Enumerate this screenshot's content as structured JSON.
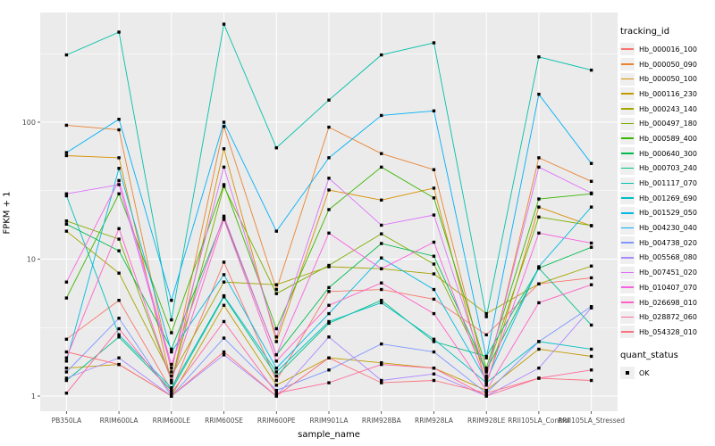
{
  "chart_data": {
    "type": "line",
    "title": "",
    "xlabel": "sample_name",
    "ylabel": "FPKM + 1",
    "y_scale": "log10",
    "y_ticks": [
      1,
      10,
      100
    ],
    "y_minor_gridlines": [
      3.162,
      31.62,
      316.2
    ],
    "ylim": [
      0.76,
      628
    ],
    "grid": true,
    "legend_position": "right",
    "legend_title": "tracking_id",
    "quant_legend": {
      "title": "quant_status",
      "label": "OK",
      "marker": "filled-black-square"
    },
    "panel_bg": "#EBEBEB",
    "grid_color": "#FFFFFF",
    "marker_color": "#000000",
    "tick_label_color": "#4D4D4D",
    "x_categories": [
      "PB350LA",
      "RRIM600LA",
      "RRIM600LE",
      "RRIM600SE",
      "RRIM600PE",
      "RRIM901LA",
      "RRIM928BA",
      "RRIM928LA",
      "RRIM928LE",
      "RRII105LA_Control",
      "RRII105LA_Stressed"
    ],
    "series": [
      {
        "name": "Hb_000016_100",
        "color": "#F8766D",
        "values": [
          2.6,
          5.0,
          1.1,
          9.5,
          1.3,
          5.8,
          6.0,
          5.1,
          2.8,
          6.6,
          7.3
        ]
      },
      {
        "name": "Hb_000050_090",
        "color": "#EA8331",
        "values": [
          95,
          88,
          1.5,
          93,
          6.0,
          92,
          59,
          45,
          1.35,
          55,
          37
        ]
      },
      {
        "name": "Hb_000050_100",
        "color": "#D89000",
        "values": [
          57,
          55,
          1.25,
          64,
          2.5,
          32,
          27,
          33,
          1.2,
          24,
          17.5
        ]
      },
      {
        "name": "Hb_000116_230",
        "color": "#C09B00",
        "values": [
          1.6,
          1.7,
          1.0,
          4.6,
          1.2,
          1.9,
          1.75,
          1.6,
          1.1,
          2.2,
          1.95
        ]
      },
      {
        "name": "Hb_000243_140",
        "color": "#A3A500",
        "values": [
          16,
          7.9,
          1.4,
          6.8,
          6.5,
          8.8,
          8.5,
          7.8,
          4.0,
          6.6,
          8.9
        ]
      },
      {
        "name": "Hb_000497_180",
        "color": "#7CAE00",
        "values": [
          19,
          14,
          1.3,
          34,
          5.6,
          9.0,
          15.3,
          9.2,
          1.5,
          20.3,
          17.6
        ]
      },
      {
        "name": "Hb_000589_400",
        "color": "#39B600",
        "values": [
          5.2,
          30,
          2.9,
          35,
          3.1,
          23,
          47,
          28,
          1.6,
          27.5,
          30
        ]
      },
      {
        "name": "Hb_000640_300",
        "color": "#00BB4E",
        "values": [
          18,
          11.5,
          2.2,
          20,
          2.0,
          6.2,
          13.0,
          10.5,
          1.55,
          8.6,
          12.2
        ]
      },
      {
        "name": "Hb_000703_240",
        "color": "#00C087",
        "values": [
          1.3,
          2.7,
          1.1,
          5.3,
          1.4,
          3.4,
          5.0,
          2.5,
          1.95,
          8.6,
          3.3
        ]
      },
      {
        "name": "Hb_001117_070",
        "color": "#00C1A9",
        "values": [
          310,
          455,
          3.6,
          520,
          65,
          145,
          310,
          380,
          3.8,
          300,
          240
        ]
      },
      {
        "name": "Hb_001269_690",
        "color": "#00BFC4",
        "values": [
          29,
          2.8,
          1.15,
          5.4,
          1.5,
          3.5,
          4.8,
          2.6,
          1.25,
          2.5,
          2.2
        ]
      },
      {
        "name": "Hb_001529_050",
        "color": "#00BAE3",
        "values": [
          1.8,
          46,
          2.1,
          7.7,
          1.6,
          4.0,
          10.2,
          6.0,
          1.3,
          8.8,
          24
        ]
      },
      {
        "name": "Hb_004230_040",
        "color": "#00B0F6",
        "values": [
          60,
          105,
          5.0,
          100,
          16,
          55,
          112,
          121,
          1.9,
          160,
          50
        ]
      },
      {
        "name": "Hb_004738_020",
        "color": "#7F96FF",
        "values": [
          1.5,
          3.7,
          1.0,
          2.65,
          1.1,
          1.55,
          2.4,
          2.1,
          1.05,
          2.5,
          4.5
        ]
      },
      {
        "name": "Hb_005568_080",
        "color": "#AC88FF",
        "values": [
          1.35,
          1.9,
          1.0,
          2.0,
          1.0,
          2.7,
          1.3,
          1.45,
          1.0,
          1.6,
          4.4
        ]
      },
      {
        "name": "Hb_007451_020",
        "color": "#DC71FA",
        "values": [
          30,
          35,
          1.6,
          47,
          2.7,
          39,
          17.7,
          21,
          1.4,
          47,
          30.4
        ]
      },
      {
        "name": "Hb_010407_070",
        "color": "#F763E0",
        "values": [
          6.8,
          37.5,
          1.7,
          20.6,
          2.0,
          15.5,
          8.5,
          13.3,
          1.25,
          15.5,
          13.1
        ]
      },
      {
        "name": "Hb_026698_010",
        "color": "#FF61C9",
        "values": [
          1.9,
          16.7,
          1.3,
          19.5,
          1.8,
          4.6,
          6.7,
          4.0,
          1.1,
          4.8,
          6.5
        ]
      },
      {
        "name": "Hb_028872_060",
        "color": "#FF68A1",
        "values": [
          1.05,
          3.1,
          1.05,
          3.5,
          1.05,
          1.25,
          1.7,
          1.6,
          1.0,
          1.35,
          1.55
        ]
      },
      {
        "name": "Hb_054328_010",
        "color": "#FC717F",
        "values": [
          2.1,
          1.7,
          1.0,
          2.1,
          1.0,
          1.9,
          1.25,
          1.3,
          1.05,
          1.35,
          1.3
        ]
      }
    ]
  }
}
